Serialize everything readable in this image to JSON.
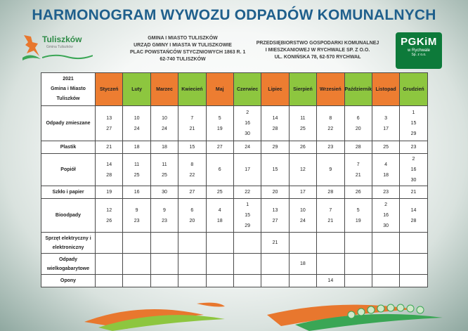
{
  "title": "HARMONOGRAM WYWOZU ODPADÓW KOMUNALNYCH",
  "logo_left": {
    "brand": "Tuliszków",
    "sub": "Gmina Tuliszków"
  },
  "logo_right": {
    "brand": "PGKiM",
    "sub": "w Rychwale",
    "sub2": "Sp. z o.o."
  },
  "header_left": {
    "line1": "GMINA I MIASTO TULISZKÓW",
    "line2": "URZĄD GMINY I MIASTA W TULISZKOWIE",
    "line3": "PLAC POWSTAŃCÓW STYCZNIOWYCH 1863 R. 1",
    "line4": "62-740 TULISZKÓW"
  },
  "header_right": {
    "line1": "PRZEDSIĘBIORSTWO GOSPODARKI KOMUNALNEJ",
    "line2": "I MIESZKANIOWEJ W RYCHWALE SP. Z O.O.",
    "line3": "UL. KONIŃSKA 78, 62-570 RYCHWAŁ"
  },
  "table": {
    "corner": {
      "line1": "2021",
      "line2": "Gmina i Miasto",
      "line3": "Tuliszków"
    },
    "months": [
      {
        "label": "Styczeń",
        "color": "#ed7d31"
      },
      {
        "label": "Luty",
        "color": "#8dc63f"
      },
      {
        "label": "Marzec",
        "color": "#ed7d31"
      },
      {
        "label": "Kwiecień",
        "color": "#8dc63f"
      },
      {
        "label": "Maj",
        "color": "#ed7d31"
      },
      {
        "label": "Czerwiec",
        "color": "#8dc63f"
      },
      {
        "label": "Lipiec",
        "color": "#ed7d31"
      },
      {
        "label": "Sierpień",
        "color": "#8dc63f"
      },
      {
        "label": "Wrzesień",
        "color": "#ed7d31"
      },
      {
        "label": "Październik",
        "color": "#8dc63f"
      },
      {
        "label": "Listopad",
        "color": "#ed7d31"
      },
      {
        "label": "Grudzień",
        "color": "#8dc63f"
      }
    ],
    "rows": [
      {
        "label": "Odpady zmieszane",
        "cells": [
          "13\n27",
          "10\n24",
          "10\n24",
          "7\n21",
          "5\n19",
          "2\n16\n30",
          "14\n28",
          "11\n25",
          "8\n22",
          "6\n20",
          "3\n17",
          "1\n15\n29"
        ]
      },
      {
        "label": "Plastik",
        "cells": [
          "21",
          "18",
          "18",
          "15",
          "27",
          "24",
          "29",
          "26",
          "23",
          "28",
          "25",
          "23"
        ]
      },
      {
        "label": "Popiół",
        "cells": [
          "14\n28",
          "11\n25",
          "11\n25",
          "8\n22",
          "6",
          "17",
          "15",
          "12",
          "9",
          "7\n21",
          "4\n18",
          "2\n16\n30"
        ]
      },
      {
        "label": "Szkło i papier",
        "cells": [
          "19",
          "16",
          "30",
          "27",
          "25",
          "22",
          "20",
          "17",
          "28",
          "26",
          "23",
          "21"
        ]
      },
      {
        "label": "Bioodpady",
        "cells": [
          "12\n26",
          "9\n23",
          "9\n23",
          "6\n20",
          "4\n18",
          "1\n15\n29",
          "13\n27",
          "10\n24",
          "7\n21",
          "5\n19",
          "2\n16\n30",
          "14\n28"
        ]
      },
      {
        "label": "Sprzęt elektryczny i elektroniczny",
        "cells": [
          "",
          "",
          "",
          "",
          "",
          "",
          "21",
          "",
          "",
          "",
          "",
          ""
        ]
      },
      {
        "label": "Odpady wielkogabarytowe",
        "cells": [
          "",
          "",
          "",
          "",
          "",
          "",
          "",
          "18",
          "",
          "",
          "",
          ""
        ]
      },
      {
        "label": "Opony",
        "cells": [
          "",
          "",
          "",
          "",
          "",
          "",
          "",
          "",
          "14",
          "",
          "",
          ""
        ]
      }
    ]
  },
  "colors": {
    "title": "#1f5f8c",
    "orange": "#ed7d31",
    "green": "#8dc63f",
    "brand_green": "#0d7a3a"
  }
}
